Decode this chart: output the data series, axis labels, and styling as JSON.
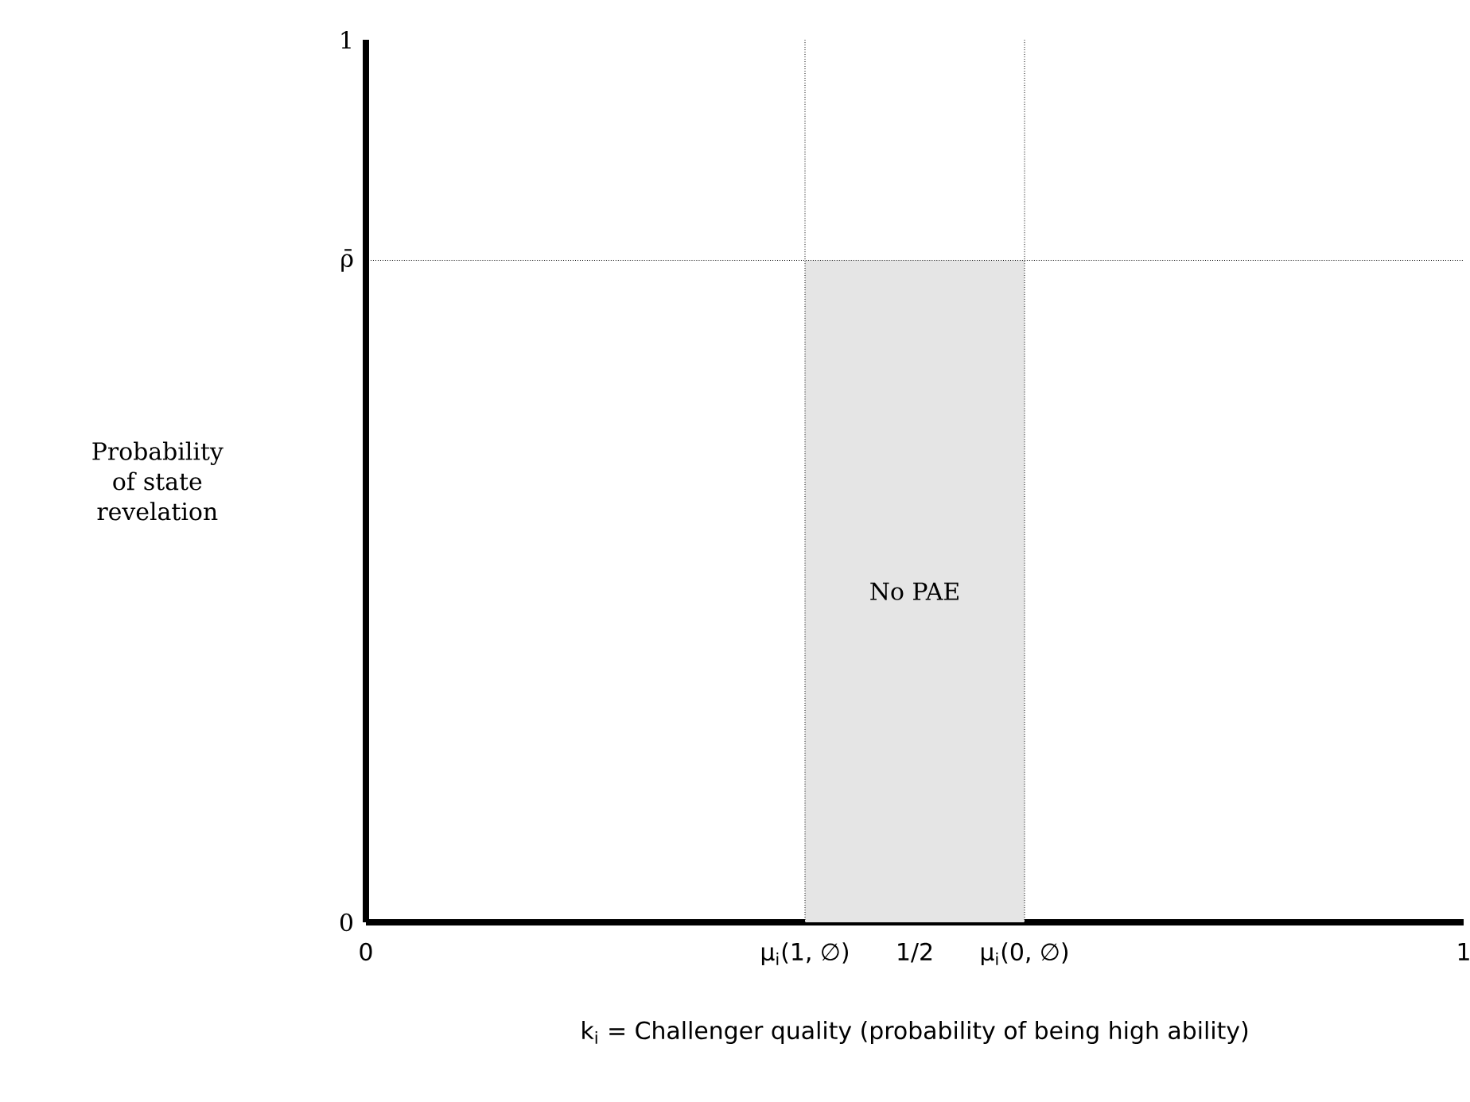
{
  "chart_data": {
    "type": "area",
    "xlabel": "k$_{i}$ = Challenger quality (probability of being high ability)",
    "ylabel": "Probability of state revelation",
    "xlim": [
      0,
      1
    ],
    "ylim": [
      0,
      1
    ],
    "xticks": [
      0,
      {
        "value": 0.5,
        "label": "1/2"
      },
      1
    ],
    "yticks": [
      0,
      1
    ],
    "series": [
      {
        "name": "No PAE",
        "color": "#e5e5e5",
        "x": [
          0.4,
          0.6
        ],
        "values": [
          0.75,
          0.75
        ]
      }
    ],
    "ref_lines": [
      {
        "axis": "x",
        "value": 0.4,
        "line_style": "dotted",
        "label": "μ$_{i}$(1, ∅)"
      },
      {
        "axis": "x",
        "value": 0.6,
        "line_style": "dotted",
        "label": "μ$_{i}$(0, ∅)"
      },
      {
        "axis": "y",
        "value": 0.75,
        "line_style": "dotted",
        "label": "ρ̄"
      }
    ],
    "grid": false
  }
}
